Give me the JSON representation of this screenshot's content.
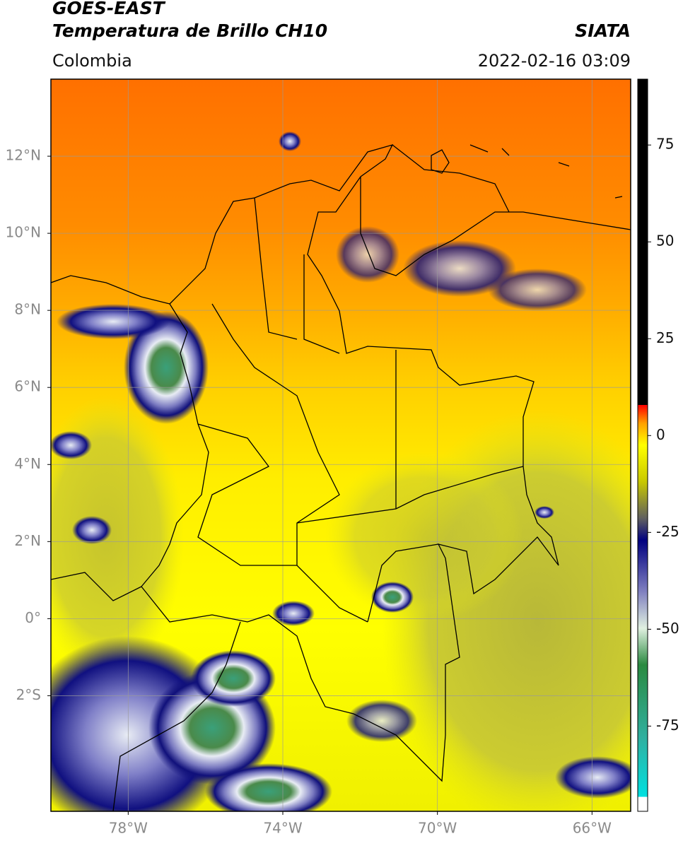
{
  "header": {
    "satellite": "GOES-EAST",
    "product": "Temperatura de Brillo CH10",
    "region": "Colombia",
    "source": "SIATA",
    "datetime": "2022-02-16 03:09"
  },
  "map": {
    "xlim": [
      -80,
      -65
    ],
    "ylim": [
      -5,
      14
    ],
    "xticks": [
      {
        "value": -78,
        "label": "78°W"
      },
      {
        "value": -74,
        "label": "74°W"
      },
      {
        "value": -70,
        "label": "70°W"
      },
      {
        "value": -66,
        "label": "66°W"
      }
    ],
    "yticks": [
      {
        "value": 12,
        "label": "12°N"
      },
      {
        "value": 10,
        "label": "10°N"
      },
      {
        "value": 8,
        "label": "8°N"
      },
      {
        "value": 6,
        "label": "6°N"
      },
      {
        "value": 4,
        "label": "4°N"
      },
      {
        "value": 2,
        "label": "2°N"
      },
      {
        "value": 0,
        "label": "0°"
      },
      {
        "value": -2,
        "label": "2°S"
      }
    ]
  },
  "colorbar": {
    "lim": [
      -97,
      92
    ],
    "ticks": [
      75,
      50,
      25,
      0,
      -25,
      -50,
      -75
    ]
  }
}
